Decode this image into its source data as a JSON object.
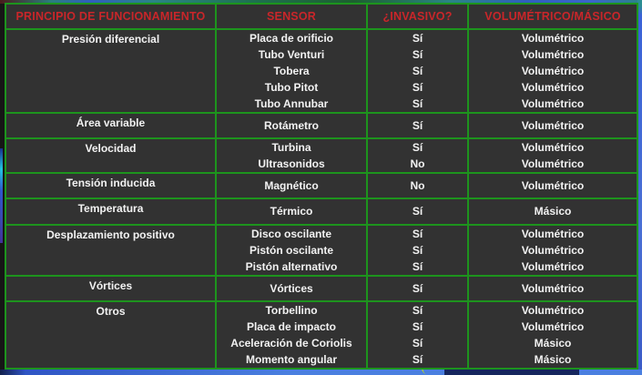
{
  "table": {
    "headers": [
      "PRINCIPIO DE FUNCIONAMIENTO",
      "SENSOR",
      "¿INVASIVO?",
      "VOLUMÉTRICO/MÁSICO"
    ],
    "groups": [
      {
        "principle": "Presión diferencial",
        "rows": [
          {
            "sensor": "Placa de orificio",
            "invasive": "Sí",
            "type": "Volumétrico"
          },
          {
            "sensor": "Tubo Venturi",
            "invasive": "Sí",
            "type": "Volumétrico"
          },
          {
            "sensor": "Tobera",
            "invasive": "Sí",
            "type": "Volumétrico"
          },
          {
            "sensor": "Tubo Pitot",
            "invasive": "Sí",
            "type": "Volumétrico"
          },
          {
            "sensor": "Tubo Annubar",
            "invasive": "Sí",
            "type": "Volumétrico"
          }
        ]
      },
      {
        "principle": "Área variable",
        "rows": [
          {
            "sensor": "Rotámetro",
            "invasive": "Sí",
            "type": "Volumétrico"
          }
        ]
      },
      {
        "principle": "Velocidad",
        "rows": [
          {
            "sensor": "Turbina",
            "invasive": "Sí",
            "type": "Volumétrico"
          },
          {
            "sensor": "Ultrasonidos",
            "invasive": "No",
            "type": "Volumétrico"
          }
        ]
      },
      {
        "principle": "Tensión inducida",
        "rows": [
          {
            "sensor": "Magnético",
            "invasive": "No",
            "type": "Volumétrico"
          }
        ]
      },
      {
        "principle": "Temperatura",
        "rows": [
          {
            "sensor": "Térmico",
            "invasive": "Sí",
            "type": "Másico"
          }
        ]
      },
      {
        "principle": "Desplazamiento positivo",
        "rows": [
          {
            "sensor": "Disco oscilante",
            "invasive": "Sí",
            "type": "Volumétrico"
          },
          {
            "sensor": "Pistón oscilante",
            "invasive": "Sí",
            "type": "Volumétrico"
          },
          {
            "sensor": "Pistón alternativo",
            "invasive": "Sí",
            "type": "Volumétrico"
          }
        ]
      },
      {
        "principle": "Vórtices",
        "rows": [
          {
            "sensor": "Vórtices",
            "invasive": "Sí",
            "type": "Volumétrico"
          }
        ]
      },
      {
        "principle": "Otros",
        "rows": [
          {
            "sensor": "Torbellino",
            "invasive": "Sí",
            "type": "Volumétrico"
          },
          {
            "sensor": "Placa de impacto",
            "invasive": "Sí",
            "type": "Volumétrico"
          },
          {
            "sensor": "Aceleración de Coriolis",
            "invasive": "Sí",
            "type": "Másico"
          },
          {
            "sensor": "Momento angular",
            "invasive": "Sí",
            "type": "Másico"
          }
        ]
      }
    ]
  },
  "colors": {
    "page_bg": "#161616",
    "cell_bg": "#323232",
    "cell_text": "#f2f2f2",
    "header_text": "#c9262a",
    "table_border": "#1d941d",
    "edge_blue": "#3a62d8",
    "edge_teal": "#2b8e93",
    "edge_navy": "#16265e",
    "accent_lime": "#aacf3a",
    "accent_cyan": "#22c4e0"
  }
}
